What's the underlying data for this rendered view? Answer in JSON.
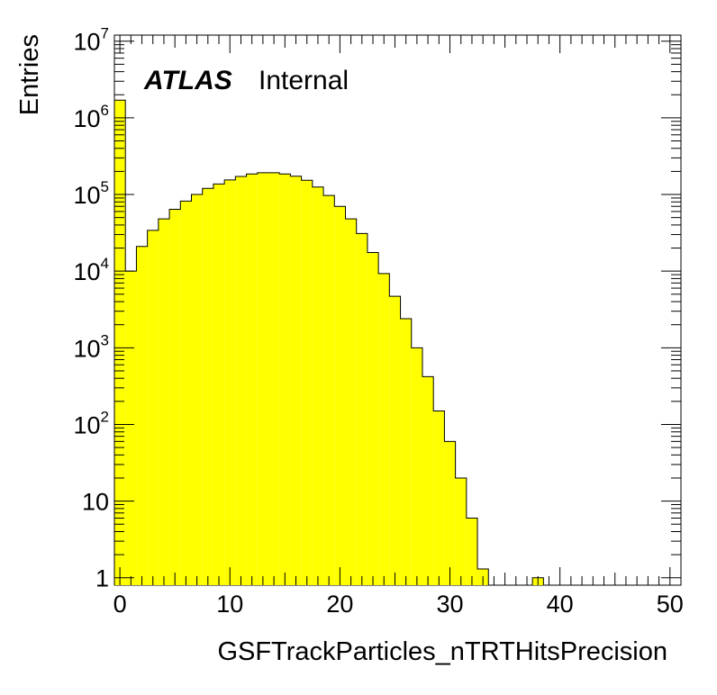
{
  "chart_data": {
    "type": "bar",
    "title": "",
    "xlabel": "GSFTrackParticles_nTRTHitsPrecision",
    "ylabel": "Entries",
    "xlim": [
      -0.5,
      51
    ],
    "ylim": [
      0.8,
      12000000
    ],
    "y_scale": "log",
    "grid": false,
    "legend": "none",
    "bin_width": 1,
    "bin_low_edges": [
      -0.5,
      0.5,
      1.5,
      2.5,
      3.5,
      4.5,
      5.5,
      6.5,
      7.5,
      8.5,
      9.5,
      10.5,
      11.5,
      12.5,
      13.5,
      14.5,
      15.5,
      16.5,
      17.5,
      18.5,
      19.5,
      20.5,
      21.5,
      22.5,
      23.5,
      24.5,
      25.5,
      26.5,
      27.5,
      28.5,
      29.5,
      30.5,
      31.5,
      32.5,
      33.5,
      34.5,
      35.5,
      36.5,
      37.5
    ],
    "values": [
      1700000,
      10000,
      21000,
      34000,
      48000,
      64000,
      82000,
      100000,
      120000,
      137000,
      155000,
      172000,
      185000,
      192000,
      192000,
      185000,
      173000,
      153000,
      125000,
      97000,
      70000,
      48000,
      31000,
      17500,
      9300,
      4700,
      2400,
      1000,
      420,
      150,
      60,
      20,
      6,
      1.3,
      0,
      0,
      0,
      0,
      1
    ],
    "bar_color": "#ffff00",
    "x_ticks": [
      "0",
      "10",
      "20",
      "30",
      "40",
      "50"
    ],
    "y_ticks": [
      {
        "value": 1,
        "base": "1",
        "exp": ""
      },
      {
        "value": 10,
        "base": "10",
        "exp": ""
      },
      {
        "value": 100,
        "base": "10",
        "exp": "2"
      },
      {
        "value": 1000,
        "base": "10",
        "exp": "3"
      },
      {
        "value": 10000,
        "base": "10",
        "exp": "4"
      },
      {
        "value": 100000,
        "base": "10",
        "exp": "5"
      },
      {
        "value": 1000000,
        "base": "10",
        "exp": "6"
      },
      {
        "value": 10000000,
        "base": "10",
        "exp": "7"
      }
    ],
    "annotations": {
      "experiment": "ATLAS",
      "status": "Internal"
    }
  }
}
